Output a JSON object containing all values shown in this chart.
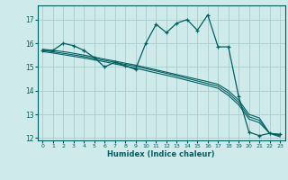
{
  "xlabel": "Humidex (Indice chaleur)",
  "bg_color": "#ceeaea",
  "grid_color": "#a8cccc",
  "line_color": "#006060",
  "xlim": [
    -0.5,
    23.5
  ],
  "ylim": [
    11.9,
    17.6
  ],
  "yticks": [
    12,
    13,
    14,
    15,
    16,
    17
  ],
  "xticks": [
    0,
    1,
    2,
    3,
    4,
    5,
    6,
    7,
    8,
    9,
    10,
    11,
    12,
    13,
    14,
    15,
    16,
    17,
    18,
    19,
    20,
    21,
    22,
    23
  ],
  "line1_x": [
    0,
    1,
    2,
    3,
    4,
    5,
    6,
    7,
    8,
    9,
    10,
    11,
    12,
    13,
    14,
    15,
    16,
    17,
    18,
    19,
    20,
    21,
    22,
    23
  ],
  "line1_y": [
    15.7,
    15.7,
    16.0,
    15.9,
    15.7,
    15.4,
    15.0,
    15.2,
    15.05,
    14.9,
    16.0,
    16.8,
    16.45,
    16.85,
    17.0,
    16.55,
    17.2,
    15.85,
    15.85,
    13.75,
    12.25,
    12.1,
    12.2,
    12.15
  ],
  "line2_x": [
    0,
    1,
    2,
    3,
    4,
    5,
    6,
    7,
    8,
    9,
    10,
    11,
    12,
    13,
    14,
    15,
    16,
    17,
    18,
    19,
    20,
    21,
    22,
    23
  ],
  "line2_y": [
    15.75,
    15.7,
    15.65,
    15.58,
    15.5,
    15.42,
    15.33,
    15.25,
    15.16,
    15.08,
    14.98,
    14.88,
    14.78,
    14.68,
    14.58,
    14.48,
    14.38,
    14.27,
    14.0,
    13.6,
    13.0,
    12.85,
    12.2,
    12.15
  ],
  "line3_x": [
    0,
    1,
    2,
    3,
    4,
    5,
    6,
    7,
    8,
    9,
    10,
    11,
    12,
    13,
    14,
    15,
    16,
    17,
    18,
    19,
    20,
    21,
    22,
    23
  ],
  "line3_y": [
    15.7,
    15.64,
    15.58,
    15.51,
    15.44,
    15.36,
    15.28,
    15.2,
    15.11,
    15.03,
    14.93,
    14.83,
    14.73,
    14.63,
    14.52,
    14.41,
    14.3,
    14.19,
    13.9,
    13.5,
    12.9,
    12.75,
    12.2,
    12.1
  ],
  "line4_x": [
    0,
    1,
    2,
    3,
    4,
    5,
    6,
    7,
    8,
    9,
    10,
    11,
    12,
    13,
    14,
    15,
    16,
    17,
    18,
    19,
    20,
    21,
    22,
    23
  ],
  "line4_y": [
    15.65,
    15.59,
    15.52,
    15.45,
    15.38,
    15.3,
    15.22,
    15.13,
    15.04,
    14.95,
    14.85,
    14.75,
    14.65,
    14.55,
    14.44,
    14.33,
    14.22,
    14.1,
    13.8,
    13.4,
    12.8,
    12.65,
    12.2,
    12.05
  ]
}
